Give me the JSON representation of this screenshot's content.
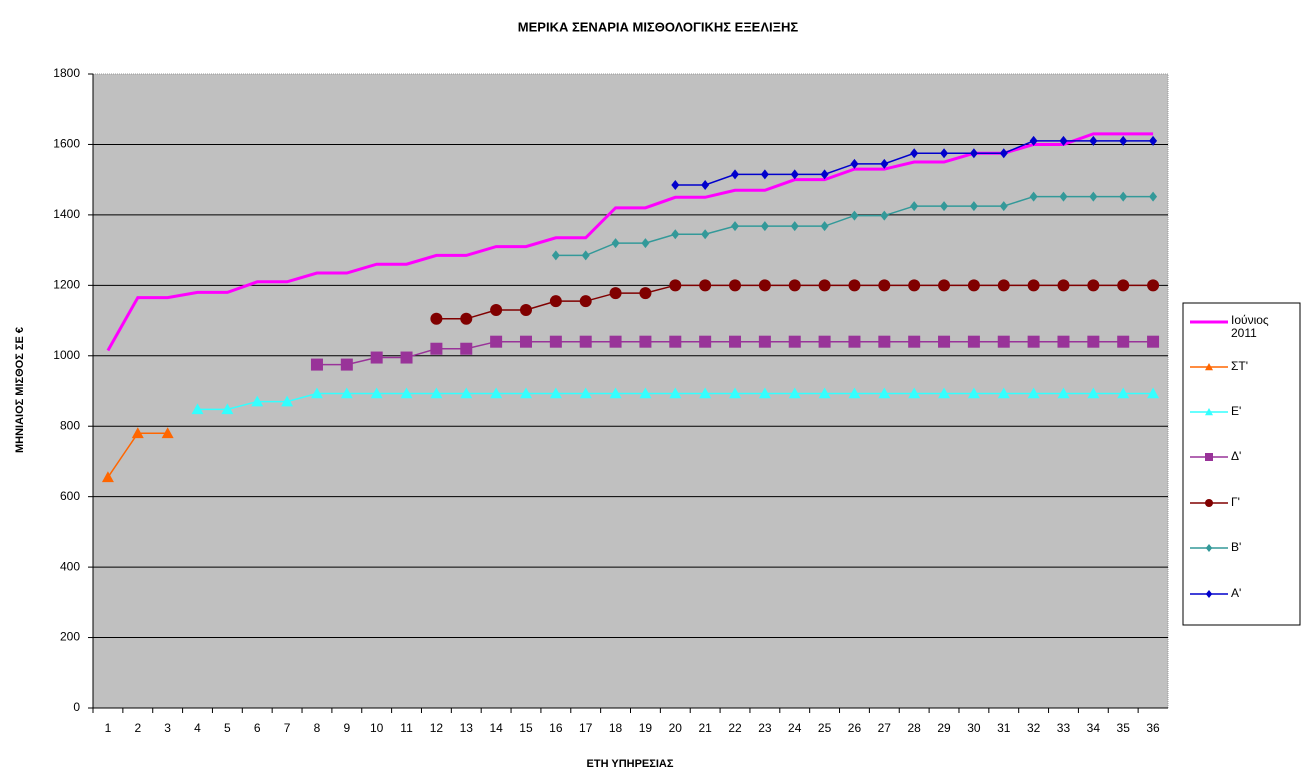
{
  "chart_data": {
    "type": "line",
    "title": "ΜΕΡΙΚΑ ΣΕΝΑΡΙΑ ΜΙΣΘΟΛΟΓΙΚΗΣ ΕΞΕΛΙΞΗΣ",
    "x_label": "ΕΤΗ ΥΠΗΡΕΣΙΑΣ",
    "y_label": "ΜΗΝΙΑΙΟΣ ΜΙΣΘΟΣ ΣΕ €",
    "categories": [
      "1",
      "2",
      "3",
      "4",
      "5",
      "6",
      "7",
      "8",
      "9",
      "10",
      "11",
      "12",
      "13",
      "14",
      "15",
      "16",
      "17",
      "18",
      "19",
      "20",
      "21",
      "22",
      "23",
      "24",
      "25",
      "26",
      "27",
      "28",
      "29",
      "30",
      "31",
      "32",
      "33",
      "34",
      "35",
      "36"
    ],
    "ylim": [
      0,
      1800
    ],
    "yticks": [
      0,
      200,
      400,
      600,
      800,
      1000,
      1200,
      1400,
      1600,
      1800
    ],
    "grid": true,
    "legend": "right",
    "series": [
      {
        "name": "Ιούνιος 2011",
        "color": "#ff00ff",
        "marker": "none",
        "values": [
          1015,
          1165,
          1165,
          1180,
          1180,
          1210,
          1210,
          1235,
          1235,
          1260,
          1260,
          1285,
          1285,
          1310,
          1310,
          1335,
          1335,
          1420,
          1420,
          1450,
          1450,
          1470,
          1470,
          1500,
          1500,
          1530,
          1530,
          1550,
          1550,
          1575,
          1575,
          1600,
          1600,
          1630,
          1630,
          1630
        ]
      },
      {
        "name": "ΣΤ'",
        "color": "#ff6600",
        "marker": "triangle",
        "values": [
          655,
          780,
          780,
          null,
          null,
          null,
          null,
          null,
          null,
          null,
          null,
          null,
          null,
          null,
          null,
          null,
          null,
          null,
          null,
          null,
          null,
          null,
          null,
          null,
          null,
          null,
          null,
          null,
          null,
          null,
          null,
          null,
          null,
          null,
          null,
          null
        ]
      },
      {
        "name": "Ε'",
        "color": "#33ffff",
        "marker": "triangle",
        "values": [
          null,
          null,
          null,
          848,
          848,
          870,
          870,
          893,
          893,
          893,
          893,
          893,
          893,
          893,
          893,
          893,
          893,
          893,
          893,
          893,
          893,
          893,
          893,
          893,
          893,
          893,
          893,
          893,
          893,
          893,
          893,
          893,
          893,
          893,
          893,
          893
        ]
      },
      {
        "name": "Δ'",
        "color": "#993399",
        "marker": "square",
        "values": [
          null,
          null,
          null,
          null,
          null,
          null,
          null,
          975,
          975,
          995,
          995,
          1020,
          1020,
          1040,
          1040,
          1040,
          1040,
          1040,
          1040,
          1040,
          1040,
          1040,
          1040,
          1040,
          1040,
          1040,
          1040,
          1040,
          1040,
          1040,
          1040,
          1040,
          1040,
          1040,
          1040,
          1040
        ]
      },
      {
        "name": "Γ'",
        "color": "#800000",
        "marker": "circle",
        "values": [
          null,
          null,
          null,
          null,
          null,
          null,
          null,
          null,
          null,
          null,
          null,
          1105,
          1105,
          1130,
          1130,
          1155,
          1155,
          1178,
          1178,
          1200,
          1200,
          1200,
          1200,
          1200,
          1200,
          1200,
          1200,
          1200,
          1200,
          1200,
          1200,
          1200,
          1200,
          1200,
          1200,
          1200
        ]
      },
      {
        "name": "Β'",
        "color": "#339999",
        "marker": "diamond",
        "values": [
          null,
          null,
          null,
          null,
          null,
          null,
          null,
          null,
          null,
          null,
          null,
          null,
          null,
          null,
          null,
          1285,
          1285,
          1320,
          1320,
          1345,
          1345,
          1368,
          1368,
          1368,
          1368,
          1398,
          1398,
          1425,
          1425,
          1425,
          1425,
          1452,
          1452,
          1452,
          1452,
          1452
        ]
      },
      {
        "name": "Α'",
        "color": "#0000cc",
        "marker": "diamond",
        "values": [
          null,
          null,
          null,
          null,
          null,
          null,
          null,
          null,
          null,
          null,
          null,
          null,
          null,
          null,
          null,
          null,
          null,
          null,
          null,
          1485,
          1485,
          1515,
          1515,
          1515,
          1515,
          1545,
          1545,
          1575,
          1575,
          1575,
          1575,
          1610,
          1610,
          1610,
          1610,
          1610
        ]
      }
    ]
  }
}
